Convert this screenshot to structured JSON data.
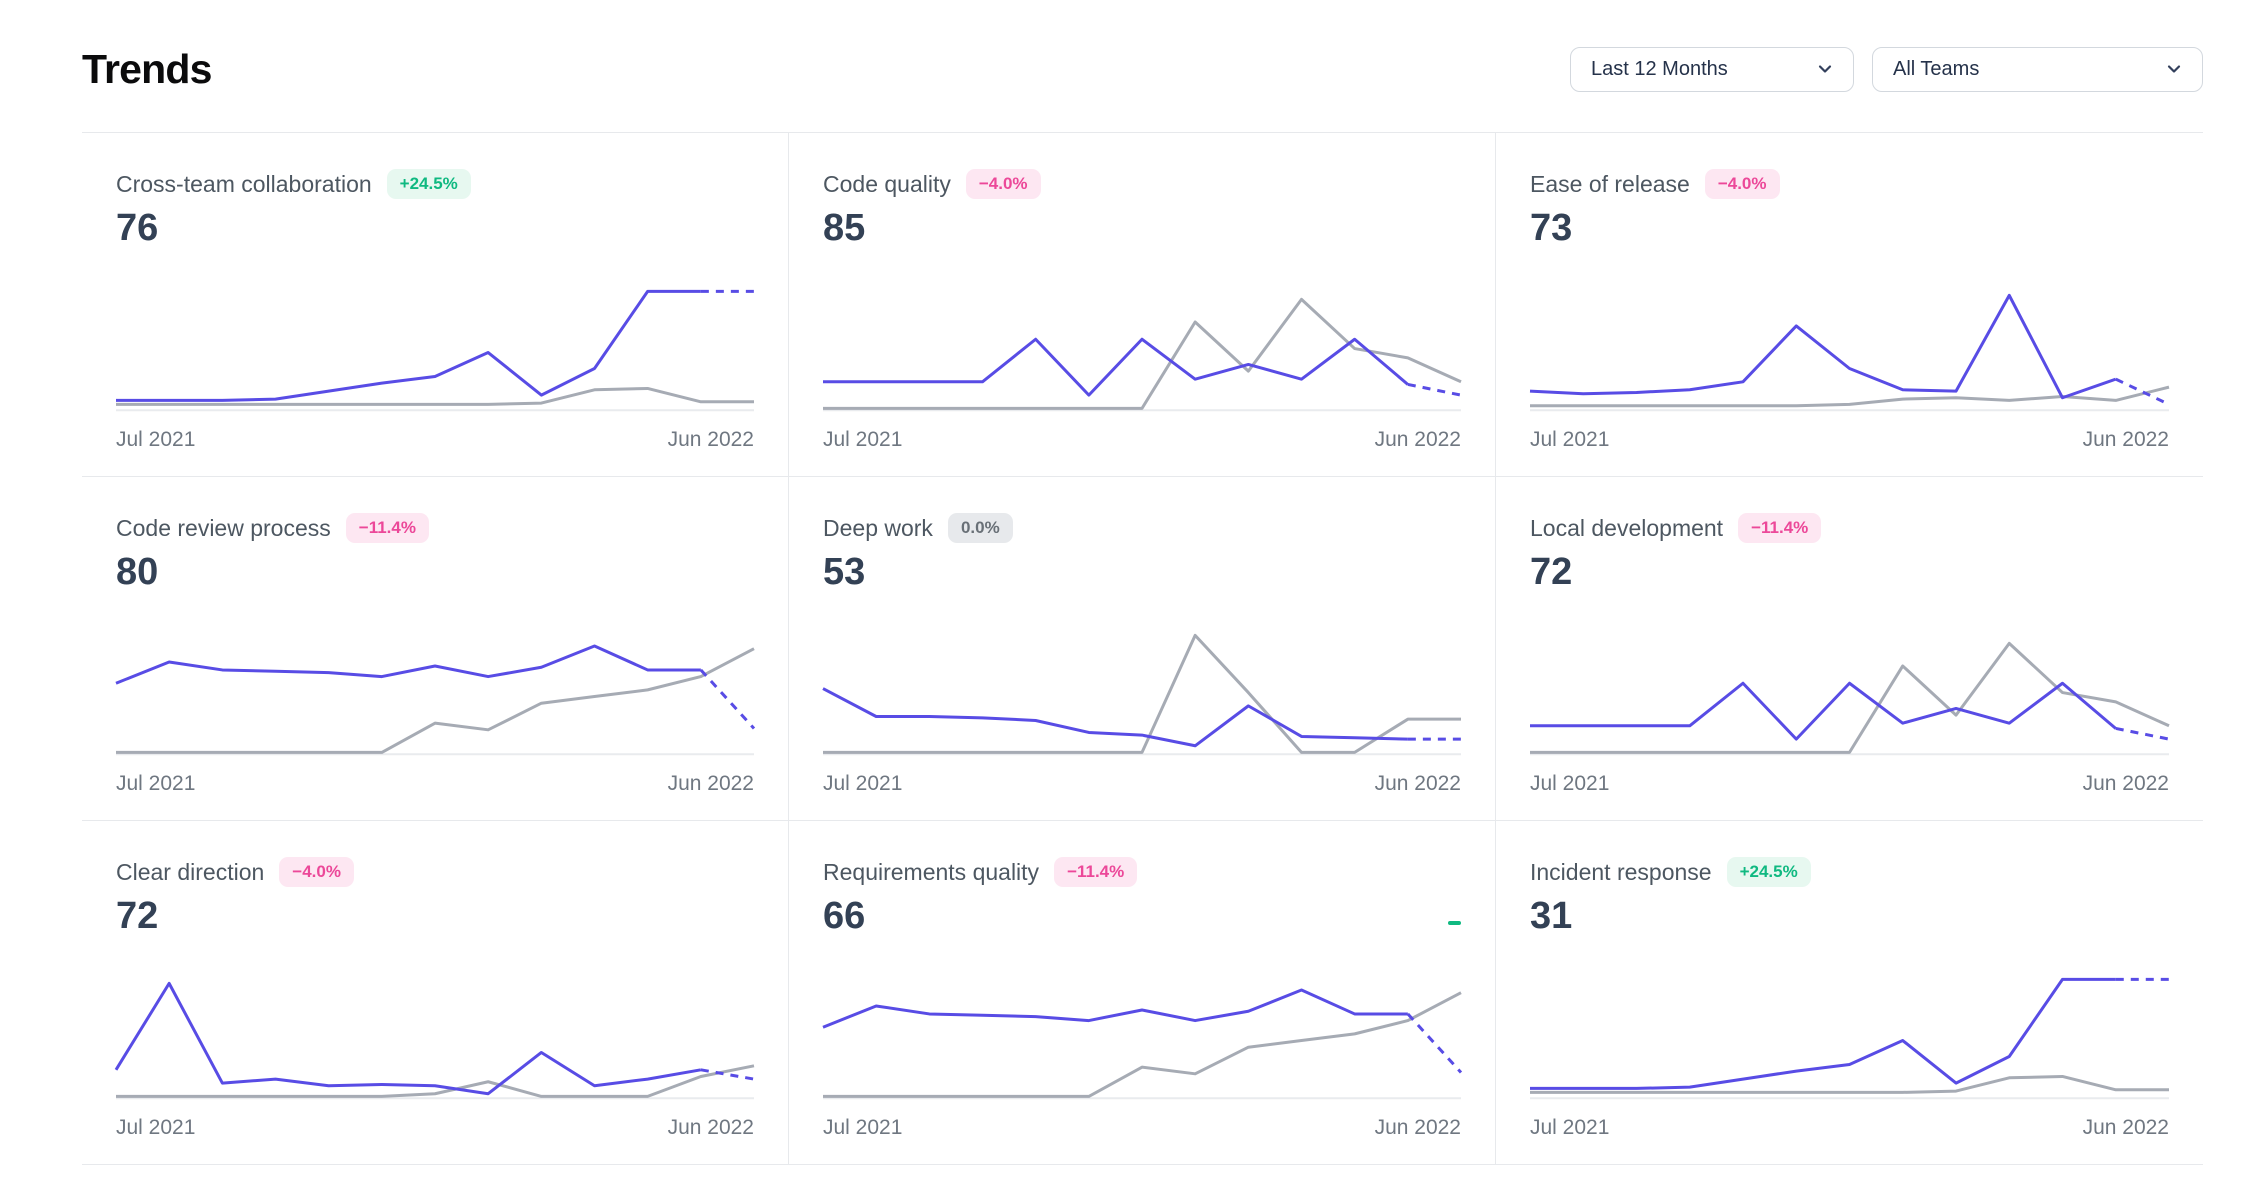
{
  "page": {
    "title": "Trends"
  },
  "filters": {
    "time_range": {
      "value": "Last 12 Months"
    },
    "teams": {
      "value": "All Teams"
    }
  },
  "colors": {
    "primary_line": "#584ce5",
    "secondary_line": "#a6abb4",
    "baseline": "#e9ebee",
    "positive": "#10b981",
    "negative": "#ec4899",
    "neutral": "#697077"
  },
  "chart_data": [
    {
      "type": "line",
      "title": "Cross-team collaboration",
      "current_value": 76,
      "change_badge": {
        "label": "+24.5%",
        "sentiment": "positive"
      },
      "x_axis": {
        "start_label": "Jul 2021",
        "end_label": "Jun 2022"
      },
      "ylim": [
        0,
        100
      ],
      "series": [
        {
          "name": "secondary",
          "color": "#a6abb4",
          "values": [
            3,
            3,
            3,
            3,
            3,
            3,
            3,
            3,
            4,
            14,
            15,
            5,
            5
          ]
        },
        {
          "name": "primary",
          "color": "#584ce5",
          "dashed_from": 11,
          "values": [
            6,
            6,
            6,
            7,
            13,
            19,
            24,
            42,
            10,
            30,
            88,
            88,
            88
          ]
        }
      ]
    },
    {
      "type": "line",
      "title": "Code quality",
      "current_value": 85,
      "change_badge": {
        "label": "−4.0%",
        "sentiment": "negative"
      },
      "x_axis": {
        "start_label": "Jul 2021",
        "end_label": "Jun 2022"
      },
      "ylim": [
        0,
        100
      ],
      "series": [
        {
          "name": "secondary",
          "color": "#a6abb4",
          "values": [
            0,
            0,
            0,
            0,
            0,
            0,
            0,
            65,
            28,
            82,
            45,
            38,
            20
          ]
        },
        {
          "name": "primary",
          "color": "#584ce5",
          "dashed_from": 11,
          "values": [
            20,
            20,
            20,
            20,
            52,
            10,
            52,
            22,
            33,
            22,
            52,
            18,
            10
          ]
        }
      ]
    },
    {
      "type": "line",
      "title": "Ease of release",
      "current_value": 73,
      "change_badge": {
        "label": "−4.0%",
        "sentiment": "negative"
      },
      "x_axis": {
        "start_label": "Jul 2021",
        "end_label": "Jun 2022"
      },
      "ylim": [
        0,
        100
      ],
      "series": [
        {
          "name": "secondary",
          "color": "#a6abb4",
          "values": [
            2,
            2,
            2,
            2,
            2,
            2,
            3,
            7,
            8,
            6,
            9,
            6,
            16
          ]
        },
        {
          "name": "primary",
          "color": "#584ce5",
          "dashed_from": 11,
          "values": [
            13,
            11,
            12,
            14,
            20,
            62,
            30,
            14,
            13,
            85,
            8,
            22,
            3
          ]
        }
      ]
    },
    {
      "type": "line",
      "title": "Code review process",
      "current_value": 80,
      "change_badge": {
        "label": "−11.4%",
        "sentiment": "negative"
      },
      "x_axis": {
        "start_label": "Jul 2021",
        "end_label": "Jun 2022"
      },
      "ylim": [
        0,
        100
      ],
      "series": [
        {
          "name": "secondary",
          "color": "#a6abb4",
          "values": [
            0,
            0,
            0,
            0,
            0,
            0,
            22,
            17,
            37,
            42,
            47,
            57,
            78
          ]
        },
        {
          "name": "primary",
          "color": "#584ce5",
          "dashed_from": 11,
          "values": [
            52,
            68,
            62,
            61,
            60,
            57,
            65,
            57,
            64,
            80,
            62,
            62,
            18
          ]
        }
      ]
    },
    {
      "type": "line",
      "title": "Deep work",
      "current_value": 53,
      "change_badge": {
        "label": "0.0%",
        "sentiment": "neutral"
      },
      "x_axis": {
        "start_label": "Jul 2021",
        "end_label": "Jun 2022"
      },
      "ylim": [
        0,
        100
      ],
      "series": [
        {
          "name": "secondary",
          "color": "#a6abb4",
          "values": [
            0,
            0,
            0,
            0,
            0,
            0,
            0,
            88,
            45,
            0,
            0,
            25,
            25
          ]
        },
        {
          "name": "primary",
          "color": "#584ce5",
          "dashed_from": 11,
          "values": [
            48,
            27,
            27,
            26,
            24,
            15,
            13,
            5,
            35,
            12,
            11,
            10,
            10
          ]
        }
      ]
    },
    {
      "type": "line",
      "title": "Local development",
      "current_value": 72,
      "change_badge": {
        "label": "−11.4%",
        "sentiment": "negative"
      },
      "x_axis": {
        "start_label": "Jul 2021",
        "end_label": "Jun 2022"
      },
      "ylim": [
        0,
        100
      ],
      "series": [
        {
          "name": "secondary",
          "color": "#a6abb4",
          "values": [
            0,
            0,
            0,
            0,
            0,
            0,
            0,
            65,
            28,
            82,
            45,
            38,
            20
          ]
        },
        {
          "name": "primary",
          "color": "#584ce5",
          "dashed_from": 11,
          "values": [
            20,
            20,
            20,
            20,
            52,
            10,
            52,
            22,
            33,
            22,
            52,
            18,
            10
          ]
        }
      ]
    },
    {
      "type": "line",
      "title": "Clear direction",
      "current_value": 72,
      "change_badge": {
        "label": "−4.0%",
        "sentiment": "negative"
      },
      "x_axis": {
        "start_label": "Jul 2021",
        "end_label": "Jun 2022"
      },
      "ylim": [
        0,
        100
      ],
      "series": [
        {
          "name": "secondary",
          "color": "#a6abb4",
          "values": [
            0,
            0,
            0,
            0,
            0,
            0,
            2,
            11,
            0,
            0,
            0,
            15,
            23
          ]
        },
        {
          "name": "primary",
          "color": "#584ce5",
          "dashed_from": 11,
          "values": [
            20,
            85,
            10,
            13,
            8,
            9,
            8,
            2,
            33,
            8,
            13,
            20,
            13
          ]
        }
      ]
    },
    {
      "type": "line",
      "title": "Requirements quality",
      "current_value": 66,
      "change_badge": {
        "label": "−11.4%",
        "sentiment": "negative"
      },
      "x_axis": {
        "start_label": "Jul 2021",
        "end_label": "Jun 2022"
      },
      "ylim": [
        0,
        100
      ],
      "stray_mark": true,
      "series": [
        {
          "name": "secondary",
          "color": "#a6abb4",
          "values": [
            0,
            0,
            0,
            0,
            0,
            0,
            22,
            17,
            37,
            42,
            47,
            57,
            78
          ]
        },
        {
          "name": "primary",
          "color": "#584ce5",
          "dashed_from": 11,
          "values": [
            52,
            68,
            62,
            61,
            60,
            57,
            65,
            57,
            64,
            80,
            62,
            62,
            18
          ]
        }
      ]
    },
    {
      "type": "line",
      "title": "Incident response",
      "current_value": 31,
      "change_badge": {
        "label": "+24.5%",
        "sentiment": "positive"
      },
      "x_axis": {
        "start_label": "Jul 2021",
        "end_label": "Jun 2022"
      },
      "ylim": [
        0,
        100
      ],
      "series": [
        {
          "name": "secondary",
          "color": "#a6abb4",
          "values": [
            3,
            3,
            3,
            3,
            3,
            3,
            3,
            3,
            4,
            14,
            15,
            5,
            5
          ]
        },
        {
          "name": "primary",
          "color": "#584ce5",
          "dashed_from": 11,
          "values": [
            6,
            6,
            6,
            7,
            13,
            19,
            24,
            42,
            10,
            30,
            88,
            88,
            88
          ]
        }
      ]
    }
  ]
}
